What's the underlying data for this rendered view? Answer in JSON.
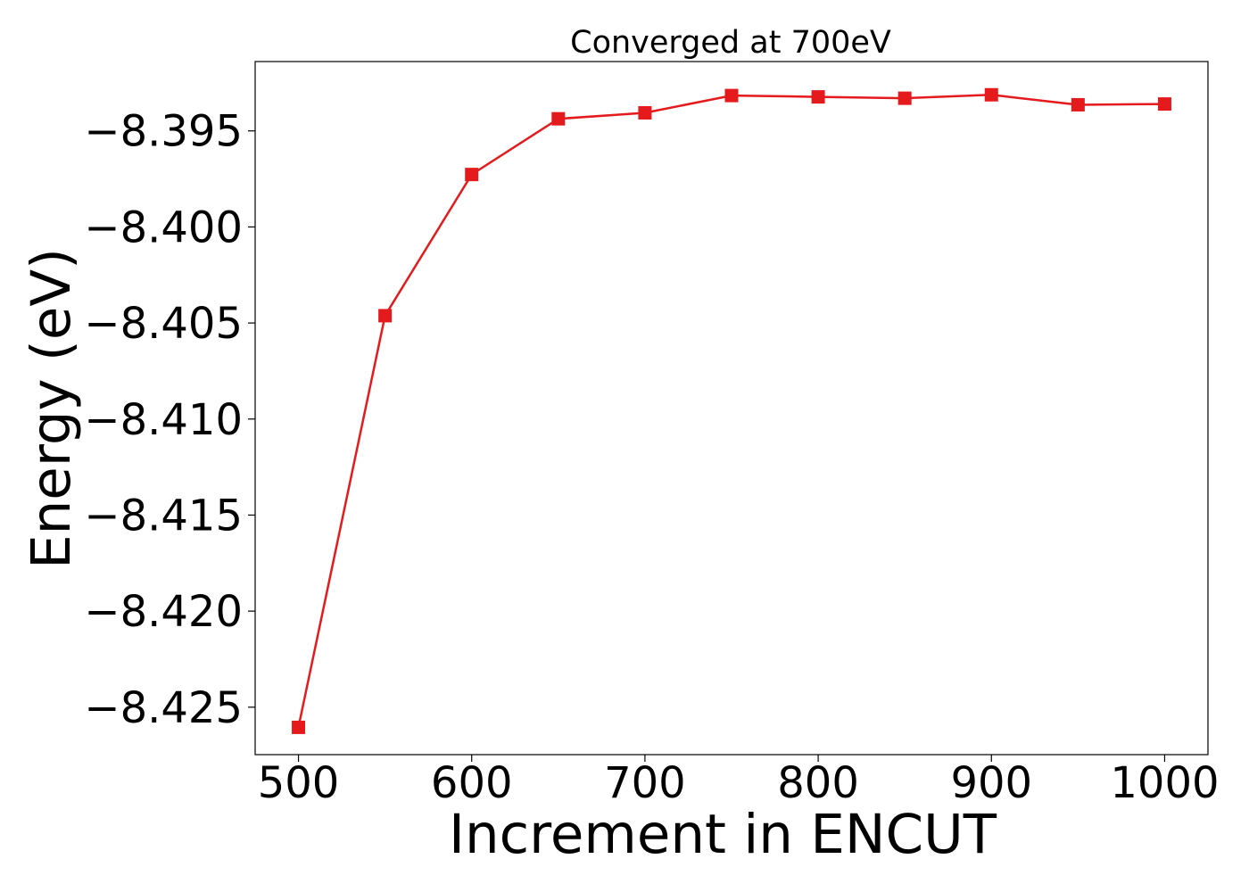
{
  "chart_data": {
    "type": "line",
    "title": "Converged at 700eV",
    "xlabel": "Increment in ENCUT",
    "ylabel": "Energy (eV)",
    "x": [
      500,
      550,
      600,
      650,
      700,
      750,
      800,
      850,
      900,
      950,
      1000
    ],
    "series": [
      {
        "values": [
          -8.42605,
          -8.40462,
          -8.39727,
          -8.39437,
          -8.39406,
          -8.39316,
          -8.39323,
          -8.3933,
          -8.39312,
          -8.39364,
          -8.3936
        ],
        "color": "#e41a1c",
        "marker": "square"
      }
    ],
    "xticks": [
      500,
      600,
      700,
      800,
      900,
      1000
    ],
    "xtick_labels": [
      "500",
      "600",
      "700",
      "800",
      "900",
      "1000"
    ],
    "yticks": [
      -8.425,
      -8.42,
      -8.415,
      -8.41,
      -8.405,
      -8.4,
      -8.395
    ],
    "ytick_labels": [
      "−8.425",
      "−8.420",
      "−8.415",
      "−8.410",
      "−8.405",
      "−8.400",
      "−8.395"
    ],
    "xlim": [
      475,
      1025
    ],
    "ylim": [
      -8.42747,
      -8.39139
    ],
    "grid": false,
    "legend": "none"
  }
}
